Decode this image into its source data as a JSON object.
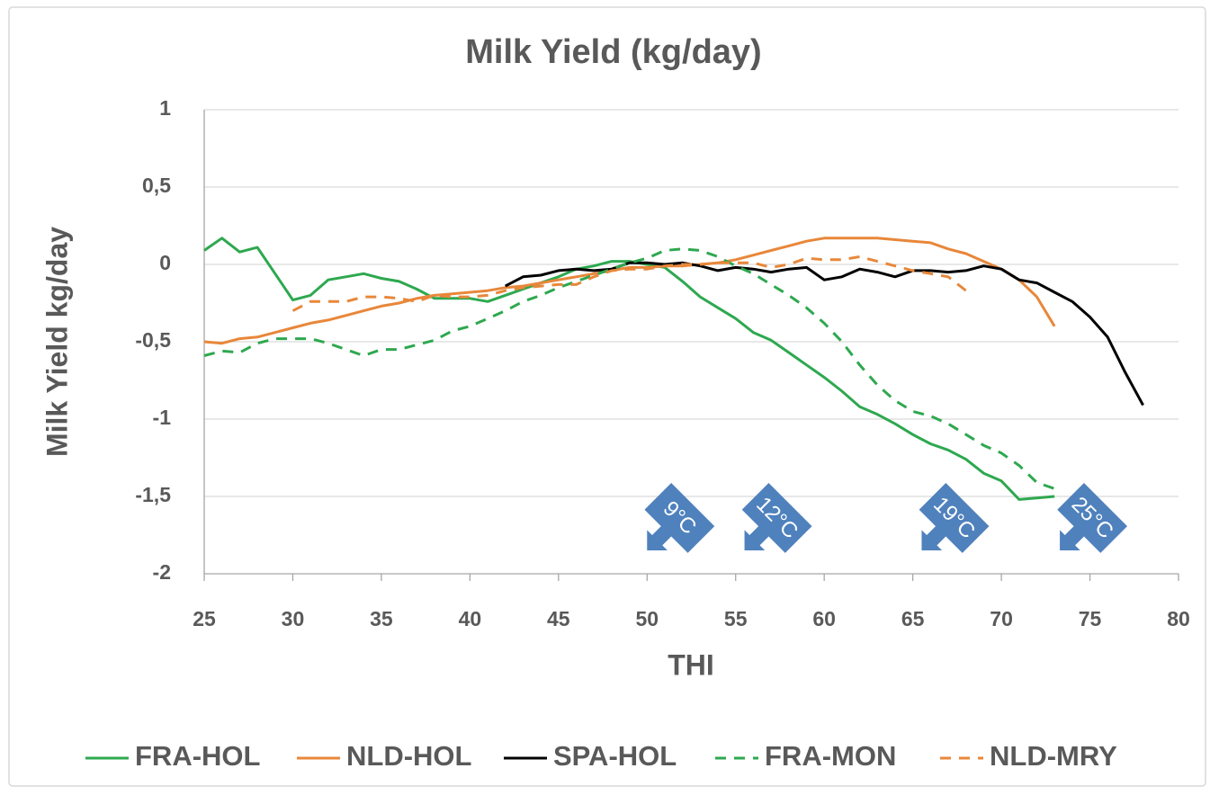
{
  "chart_data": {
    "type": "line",
    "title": "Milk Yield (kg/day)",
    "x_label": "THI",
    "y_label": "Milk Yield kg/day",
    "x": [
      25,
      26,
      27,
      28,
      29,
      30,
      31,
      32,
      33,
      34,
      35,
      36,
      37,
      38,
      39,
      40,
      41,
      42,
      43,
      44,
      45,
      46,
      47,
      48,
      49,
      50,
      51,
      52,
      53,
      54,
      55,
      56,
      57,
      58,
      59,
      60,
      61,
      62,
      63,
      64,
      65,
      66,
      67,
      68,
      69,
      70,
      71,
      72,
      73,
      74,
      75,
      76,
      77,
      78
    ],
    "series": [
      {
        "name": "FRA-HOL",
        "color": "#2ea84f",
        "dash": false,
        "values": [
          0.09,
          0.17,
          0.08,
          0.11,
          -0.06,
          -0.23,
          -0.2,
          -0.1,
          -0.08,
          -0.06,
          -0.09,
          -0.11,
          -0.16,
          -0.22,
          -0.22,
          -0.22,
          -0.24,
          -0.2,
          -0.16,
          -0.12,
          -0.08,
          -0.03,
          -0.01,
          0.02,
          0.02,
          0.0,
          -0.02,
          -0.11,
          -0.21,
          -0.28,
          -0.35,
          -0.44,
          -0.49,
          -0.57,
          -0.65,
          -0.73,
          -0.82,
          -0.92,
          -0.97,
          -1.03,
          -1.1,
          -1.16,
          -1.2,
          -1.26,
          -1.35,
          -1.4,
          -1.52,
          -1.51,
          -1.5,
          null,
          null,
          null,
          null,
          null
        ]
      },
      {
        "name": "NLD-HOL",
        "color": "#e8873a",
        "dash": false,
        "values": [
          -0.5,
          -0.51,
          -0.48,
          -0.47,
          -0.44,
          -0.41,
          -0.38,
          -0.36,
          -0.33,
          -0.3,
          -0.27,
          -0.25,
          -0.22,
          -0.2,
          -0.19,
          -0.18,
          -0.17,
          -0.15,
          -0.14,
          -0.12,
          -0.1,
          -0.08,
          -0.06,
          -0.04,
          -0.02,
          -0.02,
          -0.01,
          -0.01,
          0.0,
          0.01,
          0.03,
          0.06,
          0.09,
          0.12,
          0.15,
          0.17,
          0.17,
          0.17,
          0.17,
          0.16,
          0.15,
          0.14,
          0.1,
          0.07,
          0.02,
          -0.03,
          -0.1,
          -0.21,
          -0.4,
          null,
          null,
          null,
          null,
          null
        ]
      },
      {
        "name": "SPA-HOL",
        "color": "#000000",
        "dash": false,
        "values": [
          null,
          null,
          null,
          null,
          null,
          null,
          null,
          null,
          null,
          null,
          null,
          null,
          null,
          null,
          null,
          null,
          null,
          -0.14,
          -0.08,
          -0.07,
          -0.04,
          -0.03,
          -0.04,
          -0.03,
          0.01,
          0.01,
          0.0,
          0.01,
          -0.01,
          -0.04,
          -0.02,
          -0.03,
          -0.05,
          -0.03,
          -0.02,
          -0.1,
          -0.08,
          -0.03,
          -0.05,
          -0.08,
          -0.04,
          -0.04,
          -0.05,
          -0.04,
          -0.01,
          -0.03,
          -0.1,
          -0.12,
          -0.18,
          -0.24,
          -0.34,
          -0.47,
          -0.7,
          -0.91
        ]
      },
      {
        "name": "FRA-MON",
        "color": "#2ea84f",
        "dash": true,
        "values": [
          -0.59,
          -0.56,
          -0.57,
          -0.51,
          -0.48,
          -0.48,
          -0.48,
          -0.51,
          -0.55,
          -0.59,
          -0.55,
          -0.55,
          -0.52,
          -0.49,
          -0.43,
          -0.4,
          -0.35,
          -0.3,
          -0.24,
          -0.2,
          -0.15,
          -0.11,
          -0.07,
          -0.03,
          0.01,
          0.04,
          0.09,
          0.1,
          0.09,
          0.05,
          -0.01,
          -0.06,
          -0.13,
          -0.2,
          -0.28,
          -0.38,
          -0.5,
          -0.65,
          -0.78,
          -0.88,
          -0.95,
          -0.98,
          -1.03,
          -1.1,
          -1.17,
          -1.22,
          -1.3,
          -1.41,
          -1.45,
          null,
          null,
          null,
          null,
          null
        ]
      },
      {
        "name": "NLD-MRY",
        "color": "#e8873a",
        "dash": true,
        "values": [
          null,
          null,
          null,
          null,
          null,
          -0.3,
          -0.24,
          -0.24,
          -0.24,
          -0.21,
          -0.21,
          -0.22,
          -0.24,
          -0.2,
          -0.21,
          -0.21,
          -0.2,
          -0.17,
          -0.15,
          -0.14,
          -0.13,
          -0.13,
          -0.08,
          -0.04,
          -0.03,
          -0.03,
          -0.01,
          0.0,
          0.0,
          0.01,
          0.01,
          0.01,
          -0.02,
          0.0,
          0.04,
          0.03,
          0.03,
          0.05,
          0.02,
          -0.01,
          -0.04,
          -0.06,
          -0.08,
          -0.17,
          null,
          null,
          null,
          null,
          null,
          null,
          null,
          null,
          null,
          null
        ]
      }
    ],
    "xlim": [
      25,
      80
    ],
    "xticks": [
      25,
      30,
      35,
      40,
      45,
      50,
      55,
      60,
      65,
      70,
      75,
      80
    ],
    "ylim": [
      -2,
      1
    ],
    "yticks": [
      -2,
      {
        "value": -1.5,
        "label": "-1,5"
      },
      -1,
      {
        "value": -0.5,
        "label": "-0,5"
      },
      0,
      {
        "value": 0.5,
        "label": "0,5"
      },
      1
    ],
    "grid": true,
    "legend": "bottom",
    "annotations": [
      {
        "text": "9°C",
        "x": 50
      },
      {
        "text": "12°C",
        "x": 55.5
      },
      {
        "text": "19°C",
        "x": 65.5
      },
      {
        "text": "25°C",
        "x": 73.3
      }
    ],
    "annotation_color": "#4f81bd"
  }
}
